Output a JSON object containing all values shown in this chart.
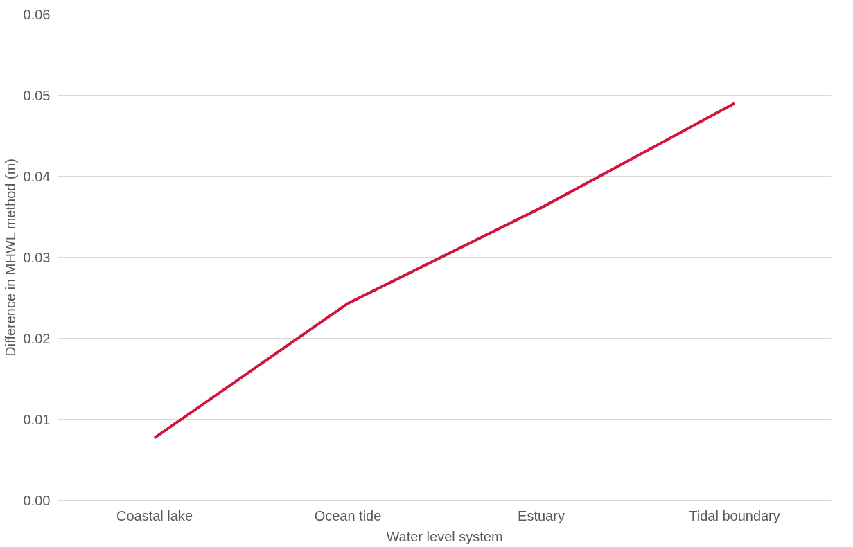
{
  "chart_data": {
    "type": "line",
    "xlabel": "Water level system",
    "ylabel": "Difference in MHWL method (m)",
    "categories": [
      "Coastal lake",
      "Ocean tide",
      "Estuary",
      "Tidal boundary"
    ],
    "series": [
      {
        "color": "#d0143c",
        "values": [
          0.0077,
          0.0243,
          0.0361,
          0.049
        ]
      }
    ],
    "ylim": [
      0,
      0.06
    ],
    "yticks": [
      {
        "value": 0,
        "label": "0.00"
      },
      {
        "value": 0.01,
        "label": "0.01"
      },
      {
        "value": 0.02,
        "label": "0.02"
      },
      {
        "value": 0.03,
        "label": "0.03"
      },
      {
        "value": 0.04,
        "label": "0.04"
      },
      {
        "value": 0.05,
        "label": "0.05"
      },
      {
        "value": 0.06,
        "label": "0.06"
      }
    ],
    "grid": "y",
    "marker": "none",
    "line_style": "solid"
  }
}
